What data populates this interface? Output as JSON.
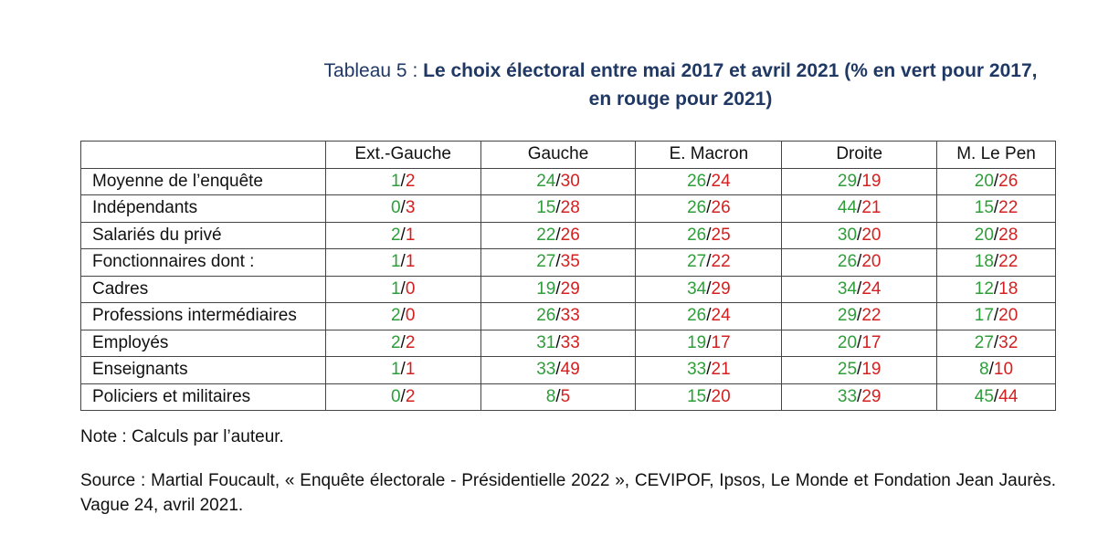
{
  "caption": {
    "prefix": "Tableau 5 : ",
    "title_bold": "Le choix électoral entre mai 2017 et avril 2021 (% en vert pour 2017, en rouge pour 2021)"
  },
  "table": {
    "columns": [
      "Ext.-Gauche",
      "Gauche",
      "E. Macron",
      "Droite",
      "M. Le Pen"
    ],
    "separator": "/",
    "colors": {
      "year_2017": "#2e9e3a",
      "year_2021": "#d42020"
    },
    "rows": [
      {
        "label": "Moyenne de l’enquête",
        "cells": [
          {
            "v2017": "1",
            "v2021": "2"
          },
          {
            "v2017": "24",
            "v2021": "30"
          },
          {
            "v2017": "26",
            "v2021": "24"
          },
          {
            "v2017": "29",
            "v2021": "19"
          },
          {
            "v2017": "20",
            "v2021": "26"
          }
        ]
      },
      {
        "label": "Indépendants",
        "cells": [
          {
            "v2017": "0",
            "v2021": "3"
          },
          {
            "v2017": "15",
            "v2021": "28"
          },
          {
            "v2017": "26",
            "v2021": "26"
          },
          {
            "v2017": "44",
            "v2021": "21"
          },
          {
            "v2017": "15",
            "v2021": "22"
          }
        ]
      },
      {
        "label": "Salariés du privé",
        "cells": [
          {
            "v2017": "2",
            "v2021": "1"
          },
          {
            "v2017": "22",
            "v2021": "26"
          },
          {
            "v2017": "26",
            "v2021": "25"
          },
          {
            "v2017": "30",
            "v2021": "20"
          },
          {
            "v2017": "20",
            "v2021": "28"
          }
        ]
      },
      {
        "label": "Fonctionnaires dont :",
        "cells": [
          {
            "v2017": "1",
            "v2021": "1"
          },
          {
            "v2017": "27",
            "v2021": "35"
          },
          {
            "v2017": "27",
            "v2021": "22"
          },
          {
            "v2017": "26",
            "v2021": "20"
          },
          {
            "v2017": "18",
            "v2021": "22"
          }
        ]
      },
      {
        "label": "Cadres",
        "cells": [
          {
            "v2017": "1",
            "v2021": "0"
          },
          {
            "v2017": "19",
            "v2021": "29"
          },
          {
            "v2017": "34",
            "v2021": "29"
          },
          {
            "v2017": "34",
            "v2021": "24"
          },
          {
            "v2017": "12",
            "v2021": "18"
          }
        ]
      },
      {
        "label": "Professions intermédiaires",
        "cells": [
          {
            "v2017": "2",
            "v2021": "0"
          },
          {
            "v2017": "26",
            "v2021": "33"
          },
          {
            "v2017": "26",
            "v2021": "24"
          },
          {
            "v2017": "29",
            "v2021": "22"
          },
          {
            "v2017": "17",
            "v2021": "20"
          }
        ]
      },
      {
        "label": "Employés",
        "cells": [
          {
            "v2017": "2",
            "v2021": "2"
          },
          {
            "v2017": "31",
            "v2021": "33"
          },
          {
            "v2017": "19",
            "v2021": "17"
          },
          {
            "v2017": "20",
            "v2021": "17"
          },
          {
            "v2017": "27",
            "v2021": "32"
          }
        ]
      },
      {
        "label": "Enseignants",
        "cells": [
          {
            "v2017": "1",
            "v2021": "1"
          },
          {
            "v2017": "33",
            "v2021": "49"
          },
          {
            "v2017": "33",
            "v2021": "21"
          },
          {
            "v2017": "25",
            "v2021": "19"
          },
          {
            "v2017": "8",
            "v2021": "10"
          }
        ]
      },
      {
        "label": "Policiers et militaires",
        "cells": [
          {
            "v2017": "0",
            "v2021": "2"
          },
          {
            "v2017": "8",
            "v2021": "5"
          },
          {
            "v2017": "15",
            "v2021": "20"
          },
          {
            "v2017": "33",
            "v2021": "29"
          },
          {
            "v2017": "45",
            "v2021": "44"
          }
        ]
      }
    ]
  },
  "note": "Note : Calculs par l’auteur.",
  "source": "Source : Martial Foucault, « Enquête électorale - Présidentielle 2022 », CEVIPOF, Ipsos, Le Monde et Fondation Jean Jaurès.  Vague 24, avril 2021."
}
